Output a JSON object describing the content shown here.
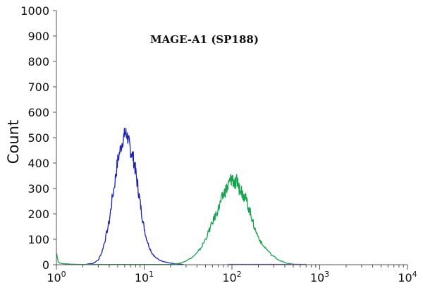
{
  "chart_data": {
    "type": "line",
    "title": "MAGE-A1 (SP188)",
    "xlabel": "",
    "ylabel": "Count",
    "xscale": "log",
    "xlim": [
      1,
      10000
    ],
    "ylim": [
      0,
      1000
    ],
    "grid": false,
    "legend": "none",
    "y_ticks": [
      "0",
      "100",
      "200",
      "300",
      "400",
      "500",
      "600",
      "700",
      "800",
      "900",
      "1000"
    ],
    "x_ticks": [
      {
        "base": "10",
        "exp": "0"
      },
      {
        "base": "10",
        "exp": "1"
      },
      {
        "base": "10",
        "exp": "2"
      },
      {
        "base": "10",
        "exp": "3"
      },
      {
        "base": "10",
        "exp": "4"
      }
    ],
    "series": [
      {
        "color": "#1a22b8",
        "x": [
          2.2,
          2.6,
          3.0,
          3.3,
          3.6,
          4.0,
          4.3,
          4.7,
          5.0,
          5.4,
          5.8,
          6.1,
          6.4,
          6.7,
          7.0,
          7.4,
          7.8,
          8.2,
          8.7,
          9.2,
          9.8,
          10.5,
          11.3,
          12.3,
          13.5,
          15.0,
          17.0,
          20.0,
          24.0,
          28.0
        ],
        "y": [
          2,
          5,
          18,
          50,
          100,
          170,
          255,
          340,
          410,
          460,
          500,
          520,
          510,
          480,
          450,
          430,
          390,
          340,
          280,
          220,
          160,
          110,
          75,
          45,
          28,
          18,
          12,
          6,
          3,
          1
        ]
      },
      {
        "color": "#17a34e",
        "x": [
          1.0,
          1.05,
          1.1,
          1.2,
          1.5,
          2.0,
          20,
          25,
          30,
          35,
          40,
          45,
          50,
          55,
          60,
          65,
          70,
          75,
          80,
          85,
          90,
          95,
          100,
          105,
          110,
          115,
          120,
          125,
          130,
          135,
          140,
          150,
          160,
          170,
          180,
          200,
          220,
          250,
          280,
          320,
          360,
          420,
          500,
          600
        ],
        "y": [
          50,
          10,
          6,
          4,
          2,
          1,
          1,
          5,
          15,
          28,
          45,
          70,
          100,
          135,
          165,
          195,
          220,
          250,
          275,
          295,
          305,
          330,
          340,
          330,
          310,
          335,
          300,
          310,
          285,
          275,
          270,
          240,
          210,
          180,
          145,
          110,
          80,
          60,
          40,
          25,
          15,
          6,
          2,
          0
        ]
      },
      {
        "color": "#6a4fb0",
        "x": [
          90,
          700
        ],
        "y": [
          1,
          1
        ]
      }
    ]
  }
}
